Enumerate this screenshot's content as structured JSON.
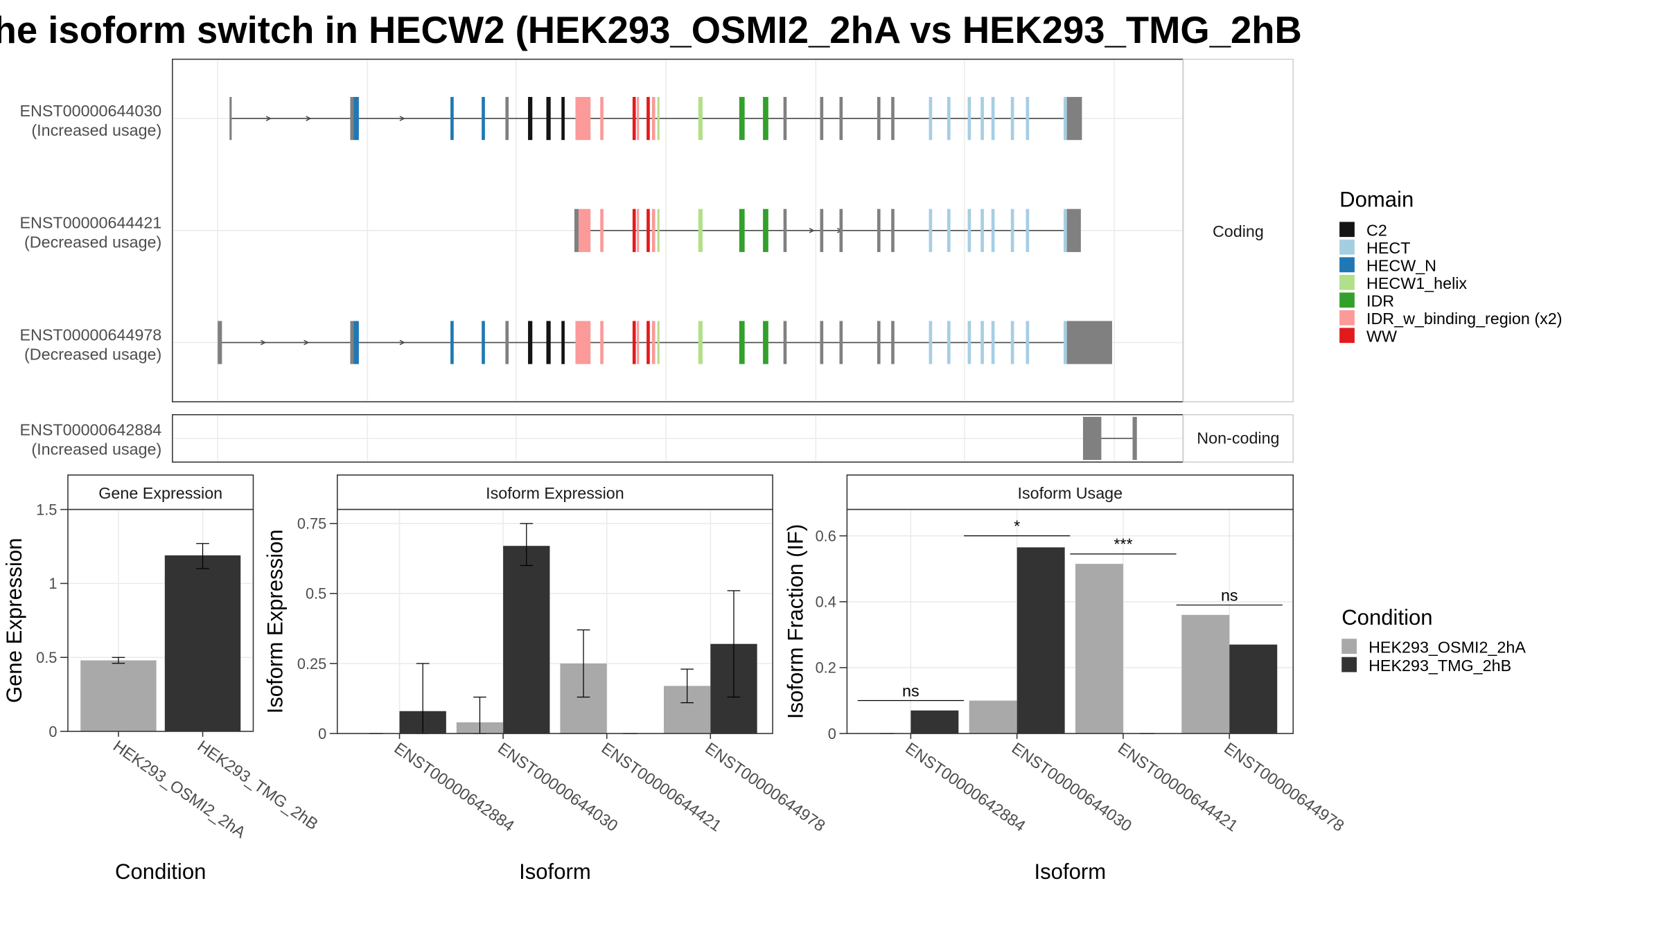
{
  "title": "he isoform switch in HECW2 (HEK293_OSMI2_2hA vs HEK293_TMG_2hB",
  "colors": {
    "C2": "#141414",
    "HECT": "#a6cee3",
    "HECW_N": "#1f78b4",
    "HECW1_helix": "#b2df8a",
    "IDR": "#33a02c",
    "IDR_w_binding_region": "#fb9a99",
    "WW": "#e31a1c",
    "intron": "#4a4a4a",
    "exon_plain": "#808080",
    "condition_A": "#a9a9a9",
    "condition_B": "#333333"
  },
  "structure": {
    "transcripts": [
      {
        "id": "ENST00000644030",
        "usage": "(Increased usage)"
      },
      {
        "id": "ENST00000644421",
        "usage": "(Decreased usage)"
      },
      {
        "id": "ENST00000644978",
        "usage": "(Decreased usage)"
      },
      {
        "id": "ENST00000642884",
        "usage": "(Increased usage)"
      }
    ],
    "facets": [
      "Coding",
      "Non-coding"
    ]
  },
  "legend_domain": {
    "title": "Domain",
    "items": [
      {
        "label": "C2",
        "color": "#141414"
      },
      {
        "label": "HECT",
        "color": "#a6cee3"
      },
      {
        "label": "HECW_N",
        "color": "#1f78b4"
      },
      {
        "label": "HECW1_helix",
        "color": "#b2df8a"
      },
      {
        "label": "IDR",
        "color": "#33a02c"
      },
      {
        "label": "IDR_w_binding_region (x2)",
        "color": "#fb9a99"
      },
      {
        "label": "WW",
        "color": "#e31a1c"
      }
    ]
  },
  "legend_condition": {
    "title": "Condition",
    "items": [
      {
        "label": "HEK293_OSMI2_2hA",
        "color": "#a9a9a9"
      },
      {
        "label": "HEK293_TMG_2hB",
        "color": "#333333"
      }
    ]
  },
  "chart_data": [
    {
      "type": "bar",
      "panel": "Gene Expression",
      "xlabel": "Condition",
      "ylabel": "Gene Expression",
      "ylim": [
        0,
        1.5
      ],
      "yticks": [
        0.0,
        0.5,
        1.0,
        1.5
      ],
      "categories": [
        "HEK293_OSMI2_2hA",
        "HEK293_TMG_2hB"
      ],
      "values": [
        0.48,
        1.19
      ],
      "error_low": [
        0.46,
        1.1
      ],
      "error_high": [
        0.5,
        1.27
      ]
    },
    {
      "type": "bar",
      "panel": "Isoform Expression",
      "xlabel": "Isoform",
      "ylabel": "Isoform Expression",
      "ylim": [
        0,
        0.8
      ],
      "yticks": [
        0.0,
        0.25,
        0.5,
        0.75
      ],
      "categories": [
        "ENST00000642884",
        "ENST00000644030",
        "ENST00000644421",
        "ENST00000644978"
      ],
      "series": [
        {
          "name": "HEK293_OSMI2_2hA",
          "values": [
            0.0,
            0.04,
            0.25,
            0.17
          ],
          "error_low": [
            0.0,
            0.0,
            0.13,
            0.11
          ],
          "error_high": [
            0.0,
            0.13,
            0.37,
            0.23
          ]
        },
        {
          "name": "HEK293_TMG_2hB",
          "values": [
            0.08,
            0.67,
            0.0,
            0.32
          ],
          "error_low": [
            0.0,
            0.6,
            0.0,
            0.13
          ],
          "error_high": [
            0.25,
            0.75,
            0.0,
            0.51
          ]
        }
      ]
    },
    {
      "type": "bar",
      "panel": "Isoform Usage",
      "xlabel": "Isoform",
      "ylabel": "Isoform Fraction (IF)",
      "ylim": [
        0,
        0.68
      ],
      "yticks": [
        0.0,
        0.2,
        0.4,
        0.6
      ],
      "categories": [
        "ENST00000642884",
        "ENST00000644030",
        "ENST00000644421",
        "ENST00000644978"
      ],
      "series": [
        {
          "name": "HEK293_OSMI2_2hA",
          "values": [
            0.0,
            0.1,
            0.515,
            0.36
          ]
        },
        {
          "name": "HEK293_TMG_2hB",
          "values": [
            0.07,
            0.565,
            0.0,
            0.27
          ]
        }
      ],
      "significance": [
        "ns",
        "*",
        "***",
        "ns"
      ],
      "significance_y": [
        0.1,
        0.6,
        0.545,
        0.39
      ]
    }
  ]
}
